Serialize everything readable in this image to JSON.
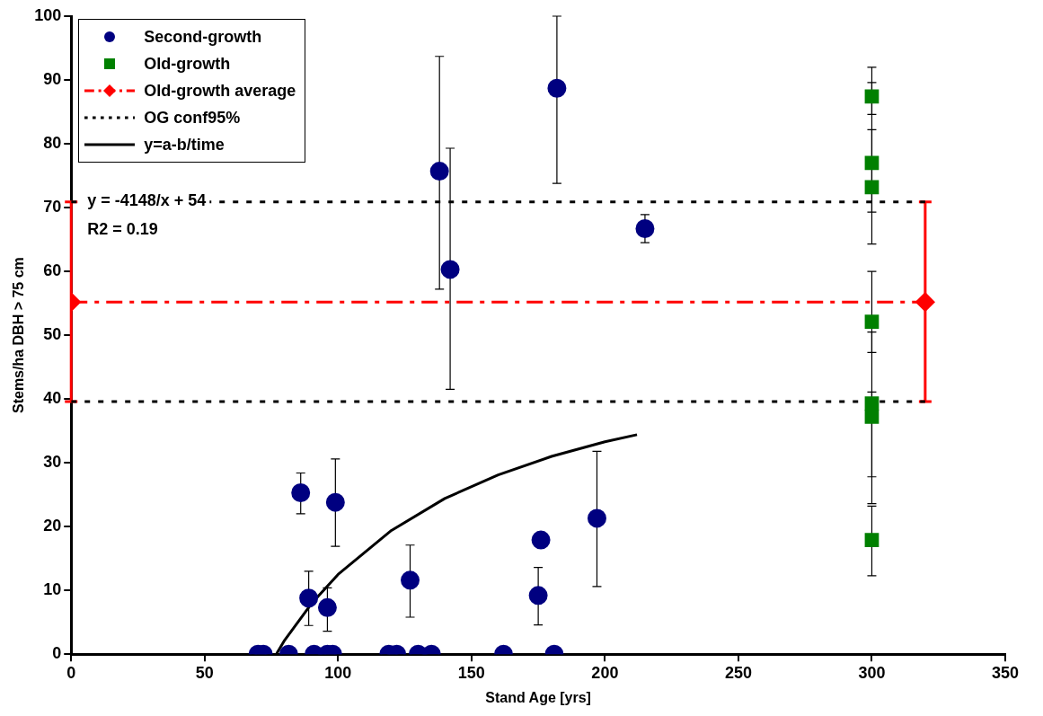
{
  "chart_data": {
    "type": "scatter",
    "xlabel": "Stand Age [yrs]",
    "ylabel": "Stems/ha DBH > 75 cm",
    "xlim": [
      0,
      350
    ],
    "ylim": [
      0,
      100
    ],
    "xticks": [
      0,
      50,
      100,
      150,
      200,
      250,
      300,
      350
    ],
    "yticks": [
      0,
      10,
      20,
      30,
      40,
      50,
      60,
      70,
      80,
      90,
      100
    ],
    "grid": false,
    "legend": "top left",
    "annotations": [
      "y = -4148/x + 54",
      "R2 = 0.19"
    ],
    "series": [
      {
        "name": "Second-growth",
        "type": "scatter",
        "color": "#000080",
        "marker": "circle",
        "x": [
          86,
          89,
          96,
          99,
          127,
          175,
          176,
          197,
          138,
          142,
          182,
          215,
          70,
          72,
          81.5,
          91,
          96,
          98,
          119,
          122,
          130,
          135,
          162,
          181
        ],
        "values": [
          25.3,
          8.8,
          7.3,
          23.8,
          11.6,
          9.2,
          17.9,
          21.3,
          75.7,
          60.3,
          88.7,
          66.7,
          0,
          0,
          0,
          0,
          0,
          0,
          0,
          0,
          0,
          0,
          0,
          0
        ],
        "errors": [
          [
            22,
            28.4
          ],
          [
            4.5,
            13
          ],
          [
            3.6,
            10.4
          ],
          [
            16.9,
            30.6
          ],
          [
            5.8,
            17.1
          ],
          [
            4.6,
            13.6
          ],
          null,
          [
            10.6,
            31.8
          ],
          [
            57.2,
            93.7
          ],
          [
            41.5,
            79.3
          ],
          [
            73.8,
            100
          ],
          [
            64.5,
            68.9
          ],
          null,
          null,
          null,
          null,
          null,
          null,
          null,
          null,
          null,
          null,
          null,
          null
        ]
      },
      {
        "name": "Old-growth",
        "type": "scatter",
        "color": "#008000",
        "marker": "square",
        "x": [
          300,
          300,
          300,
          300,
          300,
          300,
          300
        ],
        "values": [
          87.4,
          77,
          73.2,
          52.1,
          39.3,
          37.2,
          17.9
        ],
        "errors": [
          [
            84.6,
            92
          ],
          [
            69.3,
            89.6
          ],
          [
            64.3,
            82.2
          ],
          [
            47.3,
            60
          ],
          [
            27.8,
            50.5
          ],
          [
            23.6,
            41.1
          ],
          [
            12.3,
            23.2
          ]
        ]
      },
      {
        "name": "Old-growth average",
        "type": "line",
        "color": "#ff0000",
        "marker": "diamond",
        "line_style": "dashed",
        "x": [
          0,
          320
        ],
        "values": [
          55.2,
          55.2
        ],
        "errors": [
          [
            39.6,
            70.9
          ],
          [
            39.6,
            70.9
          ]
        ]
      },
      {
        "name": "OG conf95%",
        "type": "line",
        "color": "#000000",
        "marker": "none",
        "line_style": "dotted",
        "x": [
          0,
          320
        ],
        "values": [
          70.9,
          70.9
        ]
      },
      {
        "type": "line",
        "color": "#000000",
        "marker": "none",
        "line_style": "dotted",
        "x": [
          0,
          320
        ],
        "values": [
          39.6,
          39.6
        ]
      },
      {
        "name": "y=a-b/time",
        "type": "line",
        "color": "#000000",
        "marker": "none",
        "line_style": "solid",
        "x": [
          77,
          80,
          90,
          100,
          120,
          140,
          160,
          180,
          200,
          212
        ],
        "values": [
          0.1,
          2.2,
          7.9,
          12.5,
          19.4,
          24.4,
          28.1,
          31,
          33.3,
          34.4
        ]
      }
    ]
  }
}
